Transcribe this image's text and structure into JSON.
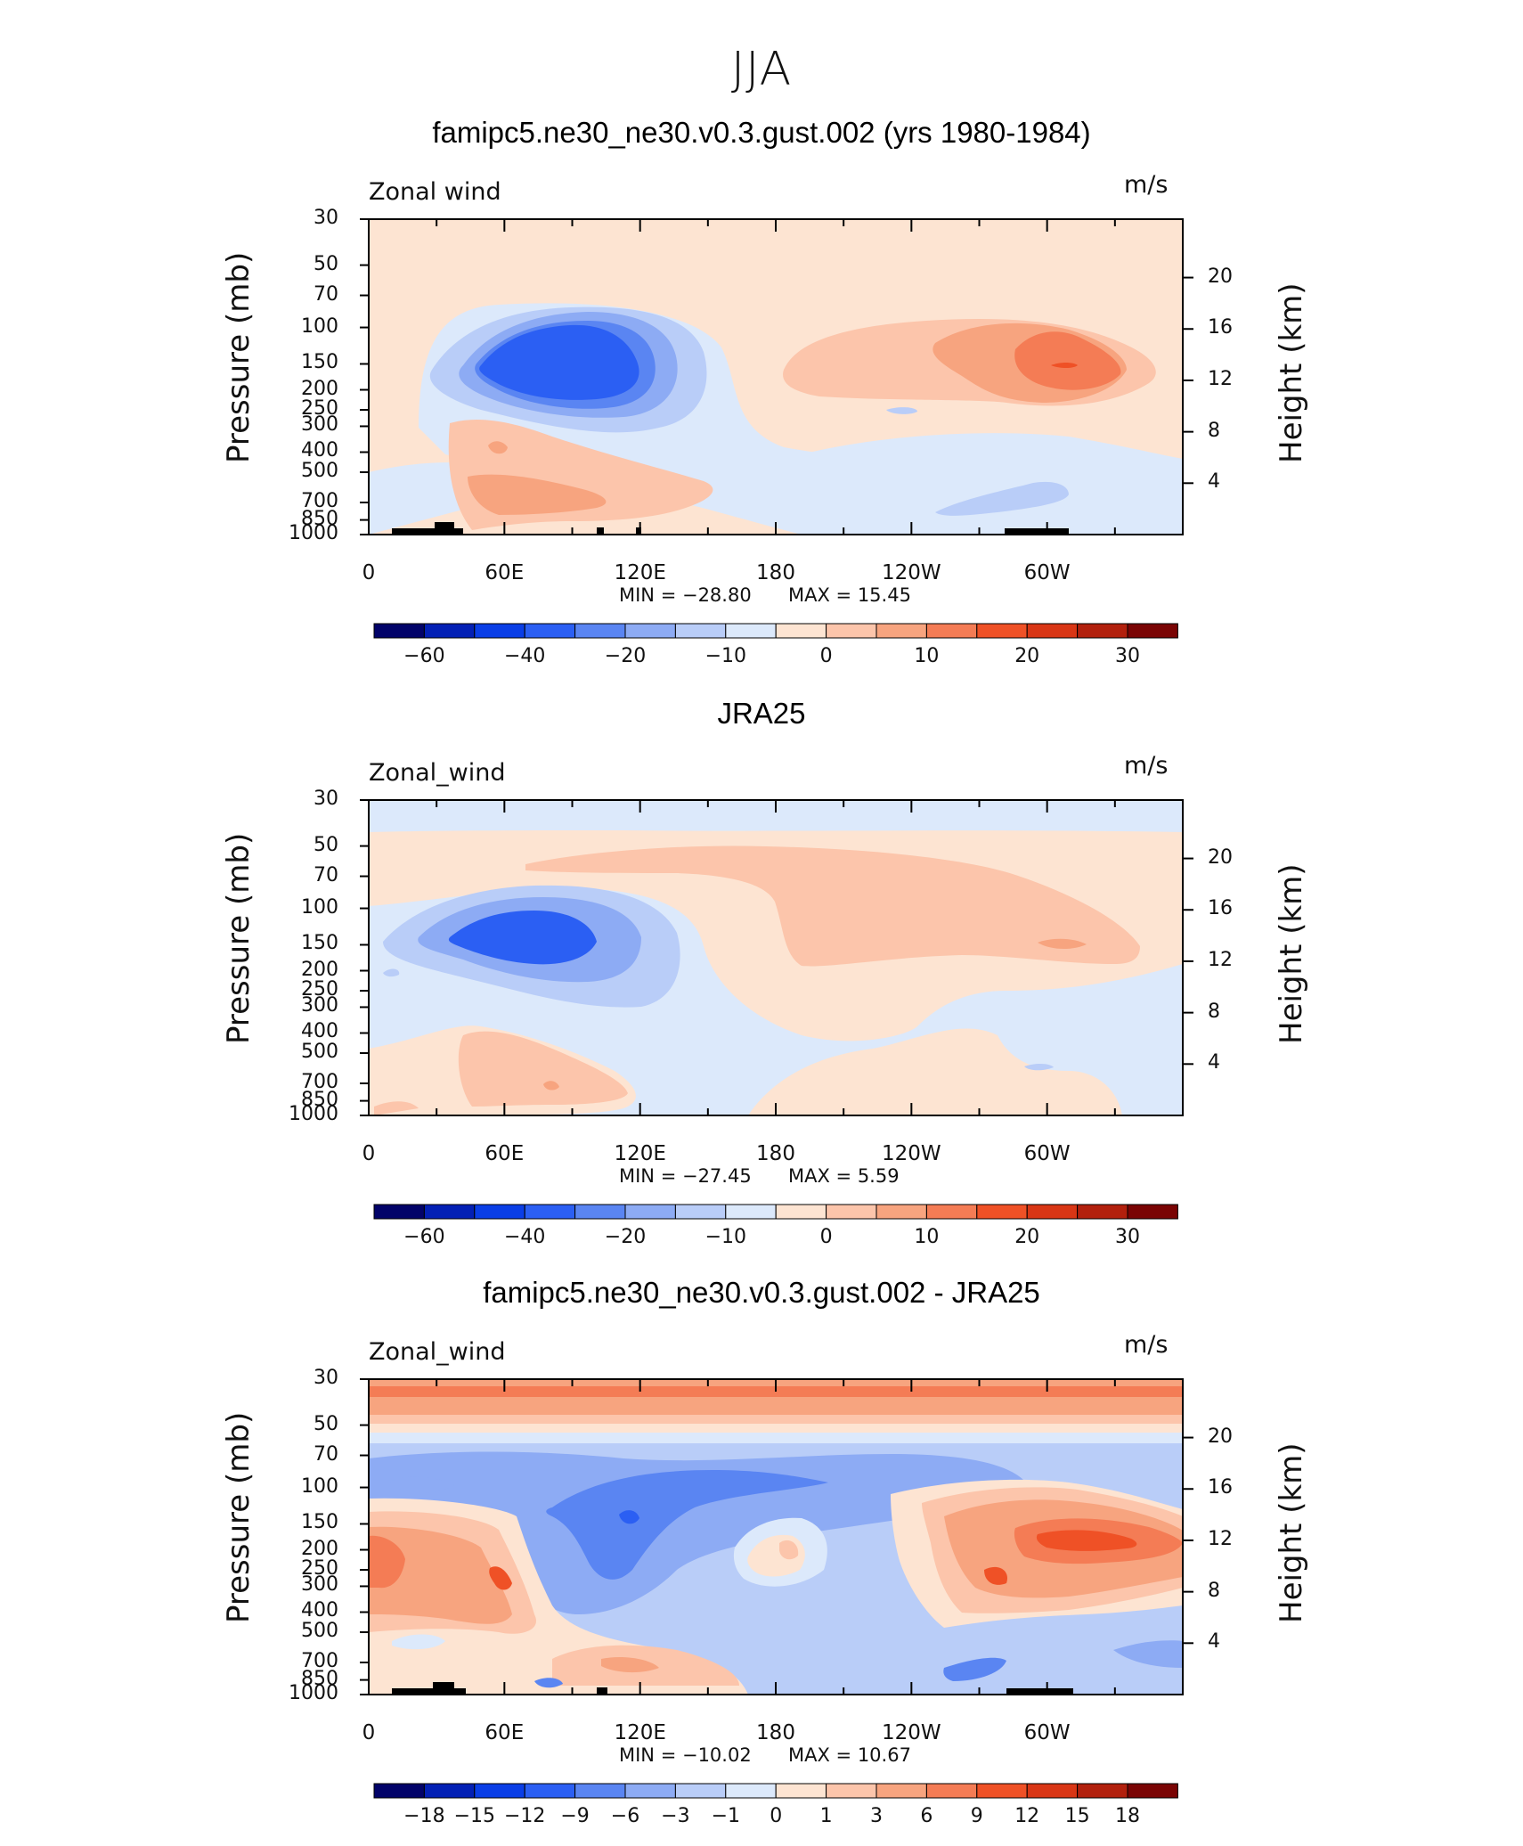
{
  "figure_title": "JJA",
  "chart_data": [
    {
      "type": "heatmap",
      "title": "famipc5.ne30_ne30.v0.3.gust.002 (yrs 1980-1984)",
      "variable_label": "Zonal wind",
      "units": "m/s",
      "ylabel": "Pressure (mb)",
      "ylabel_right": "Height (km)",
      "x_ticks": [
        "0",
        "60E",
        "120E",
        "180",
        "120W",
        "60W"
      ],
      "y_ticks": [
        "30",
        "50",
        "70",
        "100",
        "150",
        "200",
        "250",
        "300",
        "400",
        "500",
        "700",
        "850",
        "1000"
      ],
      "y_right_ticks": [
        "20",
        "16",
        "12",
        "8",
        "4"
      ],
      "min_text": "MIN = −28.80",
      "max_text": "MAX = 15.45",
      "colorbar_labels": [
        "−60",
        "−40",
        "−20",
        "−10",
        "0",
        "10",
        "20",
        "30"
      ],
      "colorbar_colors": [
        "#020369",
        "#0320b5",
        "#0a3ee6",
        "#2b5ff3",
        "#5a85f2",
        "#8dabf4",
        "#b9cdf8",
        "#dce9fb",
        "#fde4d2",
        "#fcc5ab",
        "#f7a47f",
        "#f47c55",
        "#ef5126",
        "#d93615",
        "#b2200d",
        "#7a0404"
      ],
      "x_range": [
        0,
        360
      ],
      "y_range": [
        1000,
        30
      ],
      "features": [
        {
          "lon": 85,
          "p": 145,
          "value": -28.8,
          "kind": "jet core min"
        },
        {
          "lon": 300,
          "p": 150,
          "value": 15.45,
          "kind": "max"
        }
      ]
    },
    {
      "type": "heatmap",
      "title": "JRA25",
      "variable_label": "Zonal_wind",
      "units": "m/s",
      "ylabel": "Pressure (mb)",
      "ylabel_right": "Height (km)",
      "x_ticks": [
        "0",
        "60E",
        "120E",
        "180",
        "120W",
        "60W"
      ],
      "y_ticks": [
        "30",
        "50",
        "70",
        "100",
        "150",
        "200",
        "250",
        "300",
        "400",
        "500",
        "700",
        "850",
        "1000"
      ],
      "y_right_ticks": [
        "20",
        "16",
        "12",
        "8",
        "4"
      ],
      "min_text": "MIN = −27.45",
      "max_text": "MAX = 5.59",
      "colorbar_labels": [
        "−60",
        "−40",
        "−20",
        "−10",
        "0",
        "10",
        "20",
        "30"
      ],
      "colorbar_colors": [
        "#020369",
        "#0320b5",
        "#0a3ee6",
        "#2b5ff3",
        "#5a85f2",
        "#8dabf4",
        "#b9cdf8",
        "#dce9fb",
        "#fde4d2",
        "#fcc5ab",
        "#f7a47f",
        "#f47c55",
        "#ef5126",
        "#d93615",
        "#b2200d",
        "#7a0404"
      ],
      "x_range": [
        0,
        360
      ],
      "y_range": [
        1000,
        30
      ],
      "features": [
        {
          "lon": 75,
          "p": 150,
          "value": -27.45,
          "kind": "jet core min"
        },
        {
          "lon": 305,
          "p": 150,
          "value": 5.59,
          "kind": "max"
        }
      ]
    },
    {
      "type": "heatmap",
      "title": "famipc5.ne30_ne30.v0.3.gust.002 - JRA25",
      "variable_label": "Zonal_wind",
      "units": "m/s",
      "ylabel": "Pressure (mb)",
      "ylabel_right": "Height (km)",
      "x_ticks": [
        "0",
        "60E",
        "120E",
        "180",
        "120W",
        "60W"
      ],
      "y_ticks": [
        "30",
        "50",
        "70",
        "100",
        "150",
        "200",
        "250",
        "300",
        "400",
        "500",
        "700",
        "850",
        "1000"
      ],
      "y_right_ticks": [
        "20",
        "16",
        "12",
        "8",
        "4"
      ],
      "min_text": "MIN = −10.02",
      "max_text": "MAX = 10.67",
      "colorbar_labels": [
        "−18",
        "−15",
        "−12",
        "−9",
        "−6",
        "−3",
        "−1",
        "0",
        "1",
        "3",
        "6",
        "9",
        "12",
        "15",
        "18"
      ],
      "colorbar_colors": [
        "#020369",
        "#0320b5",
        "#0a3ee6",
        "#2b5ff3",
        "#5a85f2",
        "#8dabf4",
        "#b9cdf8",
        "#dce9fb",
        "#fde4d2",
        "#fcc5ab",
        "#f7a47f",
        "#f47c55",
        "#ef5126",
        "#d93615",
        "#b2200d",
        "#7a0404"
      ],
      "x_range": [
        0,
        360
      ],
      "y_range": [
        1000,
        30
      ],
      "features": [
        {
          "lon": 115,
          "p": 100,
          "value": -10.02,
          "kind": "min"
        },
        {
          "lon": 335,
          "p": 200,
          "value": 10.67,
          "kind": "max"
        }
      ]
    }
  ]
}
